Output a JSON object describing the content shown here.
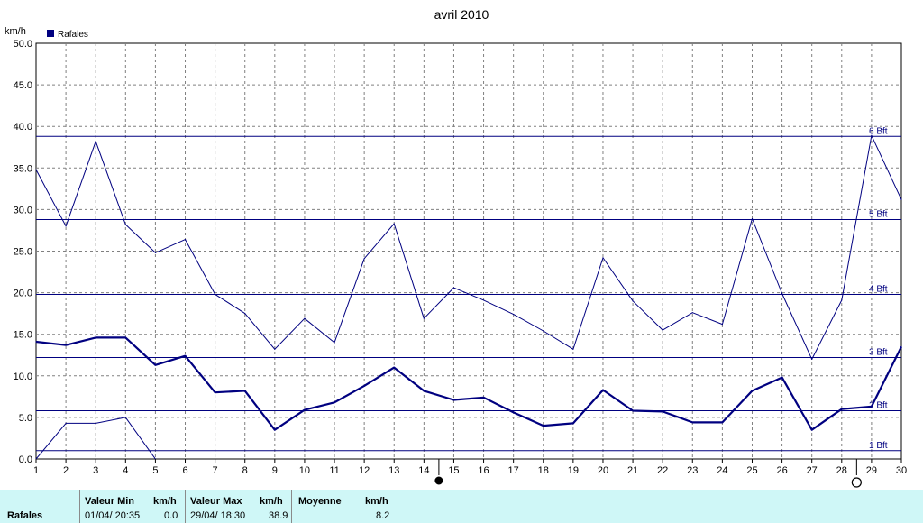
{
  "chart_data": {
    "type": "line",
    "title": "avril 2010",
    "ylabel": "km/h",
    "ylim": [
      0,
      50
    ],
    "yticks": [
      "0.0",
      "5.0",
      "10.0",
      "15.0",
      "20.0",
      "25.0",
      "30.0",
      "35.0",
      "40.0",
      "45.0",
      "50.0"
    ],
    "x": [
      1,
      2,
      3,
      4,
      5,
      6,
      7,
      8,
      9,
      10,
      11,
      12,
      13,
      14,
      15,
      16,
      17,
      18,
      19,
      20,
      21,
      22,
      23,
      24,
      25,
      26,
      27,
      28,
      29,
      30
    ],
    "grid": true,
    "legend": [
      {
        "label": "Rafales",
        "color": "#000080",
        "position": "top-left"
      }
    ],
    "series": [
      {
        "name": "",
        "style": "thin",
        "color": "#000080",
        "values": [
          34.8,
          28.0,
          38.2,
          28.2,
          24.8,
          26.4,
          19.8,
          17.5,
          13.2,
          16.9,
          14.0,
          24.1,
          28.3,
          16.9,
          20.6,
          19.1,
          17.4,
          15.4,
          13.2,
          24.2,
          19.0,
          15.5,
          17.6,
          16.2,
          28.9,
          19.9,
          12.0,
          19.1,
          38.9,
          31.2
        ]
      },
      {
        "name": "",
        "style": "thick",
        "color": "#000080",
        "values": [
          14.1,
          13.7,
          14.6,
          14.6,
          11.3,
          12.4,
          8.0,
          8.2,
          3.5,
          5.9,
          6.8,
          8.8,
          11.0,
          8.2,
          7.1,
          7.4,
          5.6,
          4.0,
          4.3,
          8.3,
          5.8,
          5.7,
          4.4,
          4.4,
          8.2,
          9.8,
          3.5,
          6.0,
          6.3,
          13.5
        ]
      },
      {
        "name": "",
        "style": "thin",
        "color": "#000080",
        "x": [
          1,
          2,
          3,
          4,
          5
        ],
        "values": [
          0.0,
          4.3,
          4.3,
          5.0,
          0.0
        ]
      }
    ],
    "reference_lines": [
      {
        "label": "1 Bft",
        "value": 1.0
      },
      {
        "label": "2 Bft",
        "value": 5.8
      },
      {
        "label": "3 Bft",
        "value": 12.2
      },
      {
        "label": "4 Bft",
        "value": 19.8
      },
      {
        "label": "5 Bft",
        "value": 28.8
      },
      {
        "label": "6 Bft",
        "value": 38.8
      }
    ],
    "moon_phases": [
      {
        "day": 14.5,
        "phase": "new"
      },
      {
        "day": 28.5,
        "phase": "full"
      }
    ]
  },
  "stats": {
    "row_label": "Rafales",
    "min_header": "Valeur Min",
    "min_unit": "km/h",
    "min_date": "01/04/  20:35",
    "min_value": "0.0",
    "max_header": "Valeur Max",
    "max_unit": "km/h",
    "max_date": "29/04/  18:30",
    "max_value": "38.9",
    "avg_header": "Moyenne",
    "avg_unit": "km/h",
    "avg_value": "8.2"
  },
  "colors": {
    "series": "#000080",
    "grid": "#808080",
    "footer_bg": "#cff7f7"
  }
}
